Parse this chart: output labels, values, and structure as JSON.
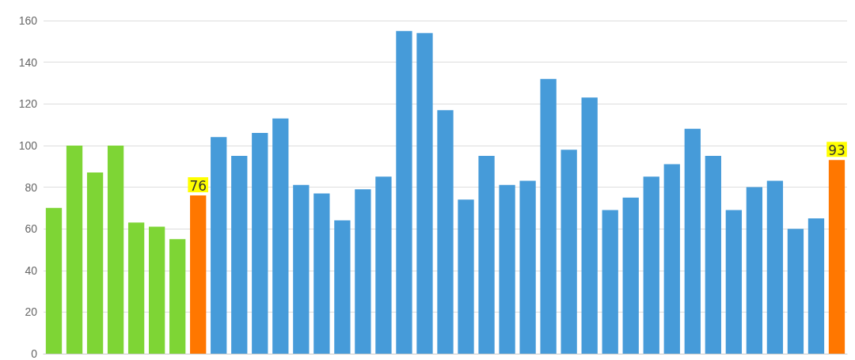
{
  "chart_data": {
    "type": "bar",
    "categories": [
      null,
      null,
      null,
      null,
      null,
      null,
      null,
      null,
      null,
      null,
      null,
      null,
      null,
      null,
      null,
      null,
      null,
      null,
      null,
      null,
      null,
      null,
      null,
      null,
      null,
      null,
      null,
      null,
      null,
      null,
      null,
      null,
      null,
      null,
      null,
      null,
      null,
      null,
      null
    ],
    "values": [
      70,
      100,
      87,
      100,
      63,
      61,
      55,
      76,
      104,
      95,
      106,
      113,
      81,
      77,
      64,
      79,
      85,
      155,
      154,
      117,
      74,
      95,
      81,
      83,
      132,
      98,
      123,
      69,
      75,
      85,
      91,
      108,
      95,
      69,
      80,
      83,
      60,
      65,
      93
    ],
    "colors": [
      "#7ed535",
      "#7ed535",
      "#7ed535",
      "#7ed535",
      "#7ed535",
      "#7ed535",
      "#7ed535",
      "#ff7700",
      "#469bd9",
      "#469bd9",
      "#469bd9",
      "#469bd9",
      "#469bd9",
      "#469bd9",
      "#469bd9",
      "#469bd9",
      "#469bd9",
      "#469bd9",
      "#469bd9",
      "#469bd9",
      "#469bd9",
      "#469bd9",
      "#469bd9",
      "#469bd9",
      "#469bd9",
      "#469bd9",
      "#469bd9",
      "#469bd9",
      "#469bd9",
      "#469bd9",
      "#469bd9",
      "#469bd9",
      "#469bd9",
      "#469bd9",
      "#469bd9",
      "#469bd9",
      "#469bd9",
      "#469bd9",
      "#ff7700"
    ],
    "value_labels": [
      null,
      null,
      null,
      null,
      null,
      null,
      null,
      "76",
      null,
      null,
      null,
      null,
      null,
      null,
      null,
      null,
      null,
      null,
      null,
      null,
      null,
      null,
      null,
      null,
      null,
      null,
      null,
      null,
      null,
      null,
      null,
      null,
      null,
      null,
      null,
      null,
      null,
      null,
      "93"
    ],
    "ylim": [
      0,
      160
    ],
    "yticks": [
      0,
      20,
      40,
      60,
      80,
      100,
      120,
      140,
      160
    ],
    "grid": "y"
  }
}
